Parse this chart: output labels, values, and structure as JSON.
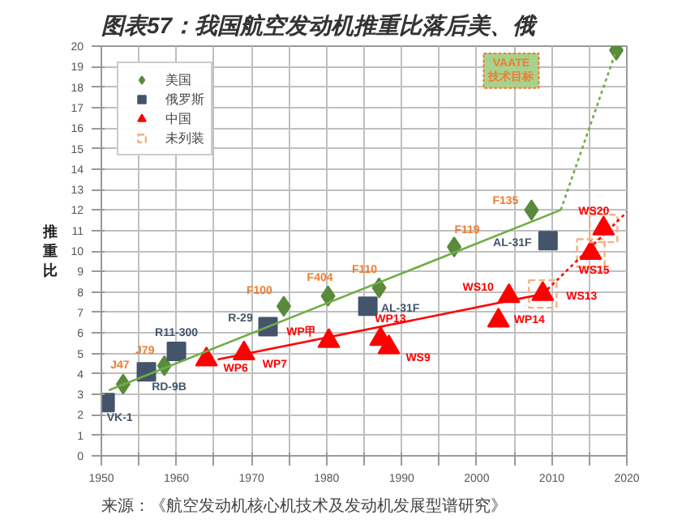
{
  "chart_data": {
    "type": "scatter",
    "title": "图表57：我国航空发动机推重比落后美、俄",
    "ylabel": "推重比",
    "xlim": [
      1950,
      2020
    ],
    "ylim": [
      0,
      20
    ],
    "xticks": [
      1950,
      {
        "value": 1955,
        "label": null
      },
      1960,
      {
        "value": 1965,
        "label": null
      },
      1970,
      {
        "value": 1975,
        "label": null
      },
      1980,
      {
        "value": 1985,
        "label": null
      },
      1990,
      {
        "value": 1995,
        "label": null
      },
      2000,
      {
        "value": 2005,
        "label": null
      },
      2010,
      {
        "value": 2015,
        "label": null
      },
      2020
    ],
    "yticks": [
      0,
      1,
      2,
      3,
      4,
      5,
      6,
      7,
      8,
      9,
      10,
      11,
      12,
      13,
      14,
      15,
      16,
      17,
      18,
      19,
      20
    ],
    "grid": true,
    "legend": "top left",
    "series": [
      {
        "name": "美国",
        "color": "#5a8a3c",
        "marker": "diamond",
        "x": [
          1952.9,
          1958.4,
          1974.3,
          1980.2,
          1987,
          1997,
          2007.3,
          2018.6
        ],
        "values": [
          3.5,
          4.4,
          7.3,
          7.8,
          8.2,
          10.2,
          12.0,
          19.8
        ]
      },
      {
        "name": "俄罗斯",
        "color": "#44546a",
        "marker": "square",
        "x": [
          1950.5,
          1956,
          1960,
          1972.2,
          1985.5,
          2009.5
        ],
        "values": [
          2.6,
          4.1,
          5.1,
          6.3,
          7.3,
          10.5
        ]
      },
      {
        "name": "中国",
        "color": "#ff0000",
        "marker": "triangle",
        "x": [
          1964,
          1969,
          1980.3,
          1987.2,
          1988.3,
          2002.9,
          2004.3,
          2008.8,
          2015.2,
          2016.9
        ],
        "values": [
          4.7,
          5.0,
          5.6,
          5.7,
          5.3,
          6.6,
          7.8,
          7.9,
          9.9,
          11.1
        ]
      },
      {
        "name": "未列装",
        "color": "#f4b183",
        "marker": "square",
        "line_style": "dashed",
        "x": [
          2008.8,
          2015.2,
          2016.9
        ],
        "values": [
          7.9,
          9.9,
          11.1
        ]
      },
      {
        "type": "line",
        "color": "#70ad47",
        "line_style": "solid",
        "x": [
          1951,
          2011.2
        ],
        "values": [
          3.2,
          12.0
        ]
      },
      {
        "type": "line",
        "color": "#70ad47",
        "line_style": "dotted",
        "x": [
          2011.2,
          2018.6
        ],
        "values": [
          12.0,
          19.8
        ]
      },
      {
        "type": "line",
        "color": "#ff0000",
        "line_style": "solid",
        "x": [
          1965.5,
          2008.8
        ],
        "values": [
          4.7,
          7.9
        ]
      },
      {
        "type": "line",
        "color": "#ff0000",
        "line_style": "dotted",
        "x": [
          2008.8,
          2020
        ],
        "values": [
          7.9,
          11.9
        ]
      }
    ],
    "annotations": [
      {
        "text": "J47",
        "x": 1952.9,
        "y": 3.5
      },
      {
        "text": "J79",
        "x": 1958.4,
        "y": 4.4
      },
      {
        "text": "VK-1",
        "x": 1950.5,
        "y": 2.6
      },
      {
        "text": "RD-9B",
        "x": 1956,
        "y": 4.1
      },
      {
        "text": "R11-300",
        "x": 1960,
        "y": 5.1
      },
      {
        "text": "R-29",
        "x": 1972.2,
        "y": 6.3
      },
      {
        "text": "F100",
        "x": 1974.3,
        "y": 7.3
      },
      {
        "text": "F404",
        "x": 1980.2,
        "y": 7.8
      },
      {
        "text": "WP6",
        "x": 1964,
        "y": 4.7
      },
      {
        "text": "WP7",
        "x": 1969,
        "y": 5.0
      },
      {
        "text": "WP甲",
        "x": 1980.3,
        "y": 5.6
      },
      {
        "text": "F110",
        "x": 1987,
        "y": 8.2
      },
      {
        "text": "AL-31F",
        "x": 1985.5,
        "y": 7.3
      },
      {
        "text": "WP13",
        "x": 1987.2,
        "y": 5.7
      },
      {
        "text": "WS9",
        "x": 1988.3,
        "y": 5.3
      },
      {
        "text": "WS10",
        "x": 2004.3,
        "y": 7.8
      },
      {
        "text": "WP14",
        "x": 2002.9,
        "y": 6.6
      },
      {
        "text": "WS13",
        "x": 2008.8,
        "y": 7.9
      },
      {
        "text": "WS15",
        "x": 2015.2,
        "y": 9.9
      },
      {
        "text": "WS20",
        "x": 2016.9,
        "y": 11.1
      },
      {
        "text": "F119",
        "x": 1997,
        "y": 10.2
      },
      {
        "text": "F135",
        "x": 2007.3,
        "y": 12.0
      },
      {
        "text": "AL-31F",
        "x": 2009.5,
        "y": 10.5
      },
      "VAATE\n技术目标",
      "来源：《航空发动机核心机技术及发动机发展型谱研究》"
    ]
  }
}
